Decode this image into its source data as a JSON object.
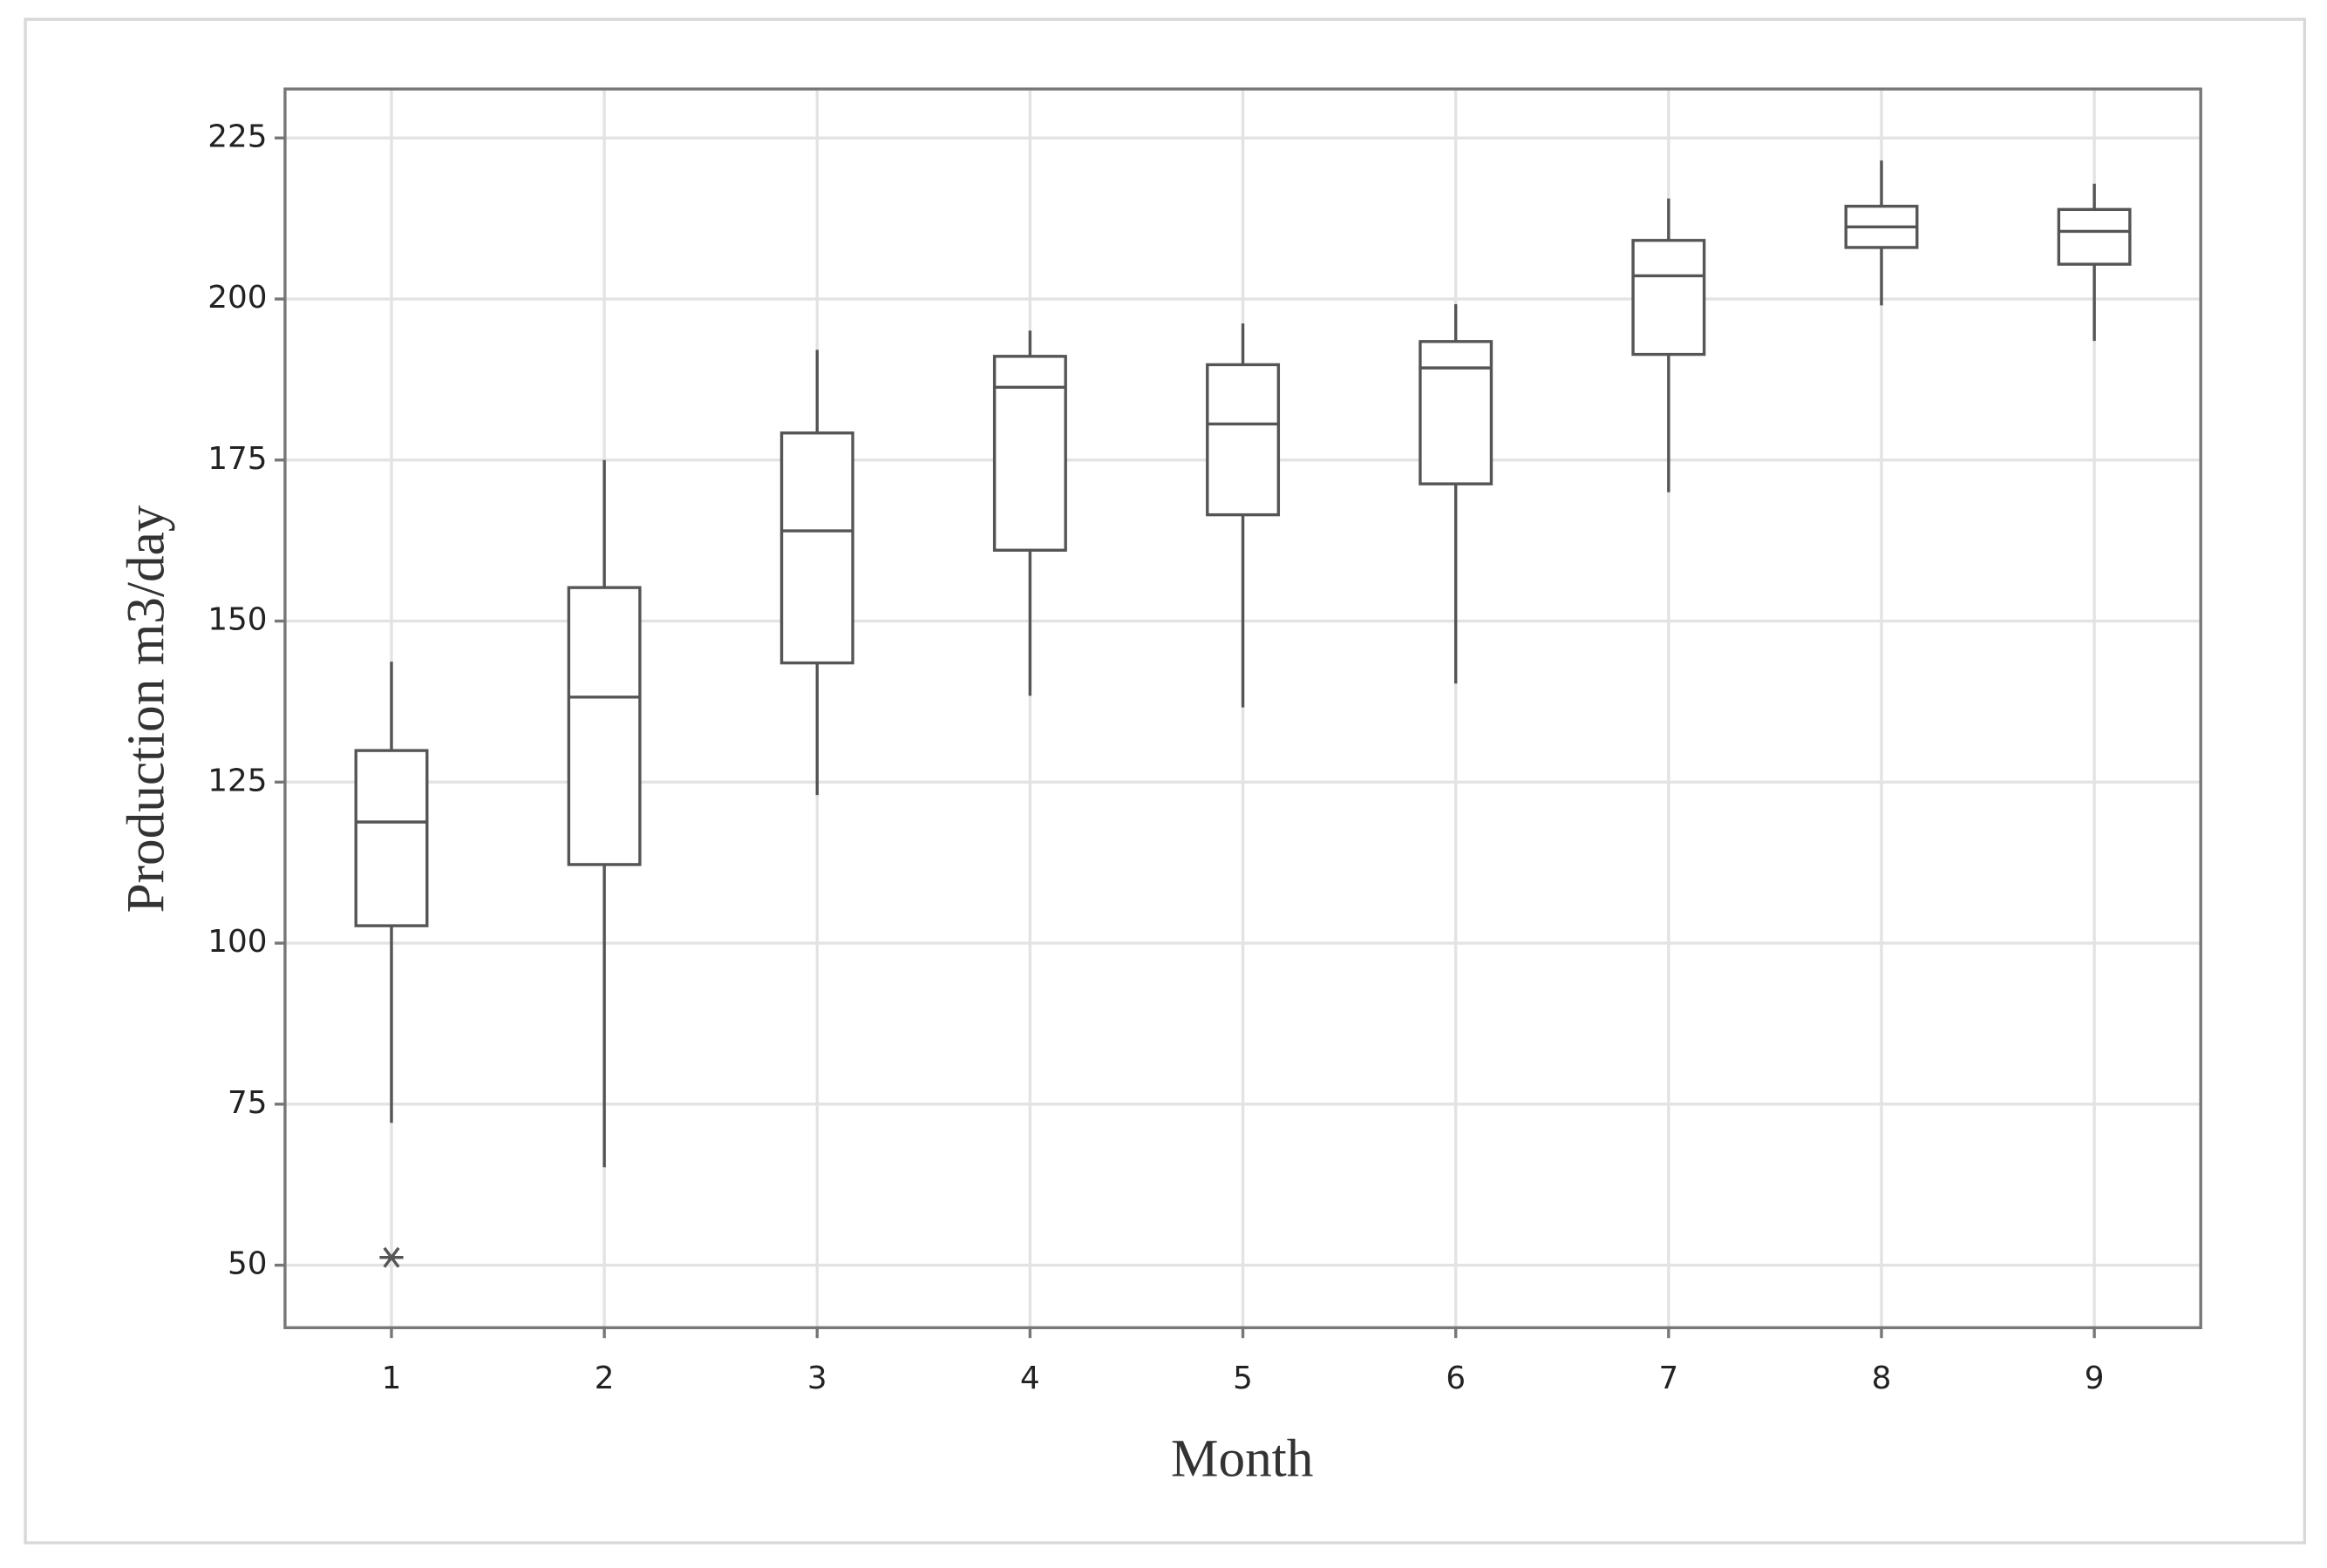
{
  "chart_data": {
    "type": "box",
    "x_label": "Month",
    "y_label": "Production m3/day",
    "categories": [
      "1",
      "2",
      "3",
      "4",
      "5",
      "6",
      "7",
      "8",
      "9"
    ],
    "boxes": [
      {
        "low": 72.1,
        "q1": 102.7,
        "median": 118.8,
        "q3": 129.9,
        "high": 143.7,
        "outliers": [
          51.2
        ]
      },
      {
        "low": 65.2,
        "q1": 112.2,
        "median": 138.2,
        "q3": 155.2,
        "high": 175.0,
        "outliers": []
      },
      {
        "low": 123.0,
        "q1": 143.5,
        "median": 164.0,
        "q3": 179.2,
        "high": 192.1,
        "outliers": []
      },
      {
        "low": 138.4,
        "q1": 161.0,
        "median": 186.3,
        "q3": 191.1,
        "high": 195.1,
        "outliers": []
      },
      {
        "low": 136.6,
        "q1": 166.5,
        "median": 180.6,
        "q3": 189.8,
        "high": 196.2,
        "outliers": []
      },
      {
        "low": 140.3,
        "q1": 171.3,
        "median": 189.3,
        "q3": 193.4,
        "high": 199.2,
        "outliers": []
      },
      {
        "low": 170.0,
        "q1": 191.4,
        "median": 203.6,
        "q3": 209.1,
        "high": 215.6,
        "outliers": []
      },
      {
        "low": 199.0,
        "q1": 208.0,
        "median": 211.2,
        "q3": 214.4,
        "high": 221.5,
        "outliers": []
      },
      {
        "low": 193.5,
        "q1": 205.4,
        "median": 210.5,
        "q3": 213.9,
        "high": 217.9,
        "outliers": []
      }
    ],
    "color": "#555555",
    "ylim": [
      40.3,
      232.6
    ],
    "yticks": [
      50,
      75,
      100,
      125,
      150,
      175,
      200,
      225
    ],
    "grid": true
  }
}
